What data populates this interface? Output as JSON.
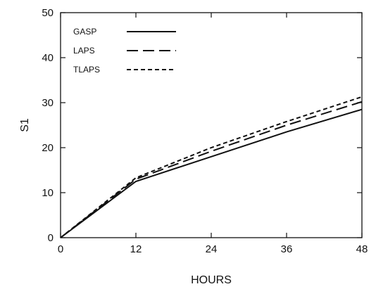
{
  "chart_data": {
    "type": "line",
    "xlabel": "HOURS",
    "ylabel": "S1",
    "xlim": [
      0,
      48
    ],
    "ylim": [
      0,
      50
    ],
    "xticks": [
      "0",
      "12",
      "24",
      "36",
      "48"
    ],
    "yticks": [
      "0",
      "10",
      "20",
      "30",
      "40",
      "50"
    ],
    "x": [
      0,
      12,
      24,
      36,
      48
    ],
    "series": [
      {
        "name": "GASP",
        "style": "solid",
        "values": [
          0,
          12.5,
          18,
          23.5,
          28.5
        ]
      },
      {
        "name": "LAPS",
        "style": "long-dash",
        "values": [
          0,
          13,
          19.2,
          25,
          30.2
        ]
      },
      {
        "name": "TLAPS",
        "style": "short-dash",
        "values": [
          0,
          13.3,
          20,
          25.8,
          31.3
        ]
      }
    ],
    "legend_position": "top-left",
    "grid": false
  }
}
